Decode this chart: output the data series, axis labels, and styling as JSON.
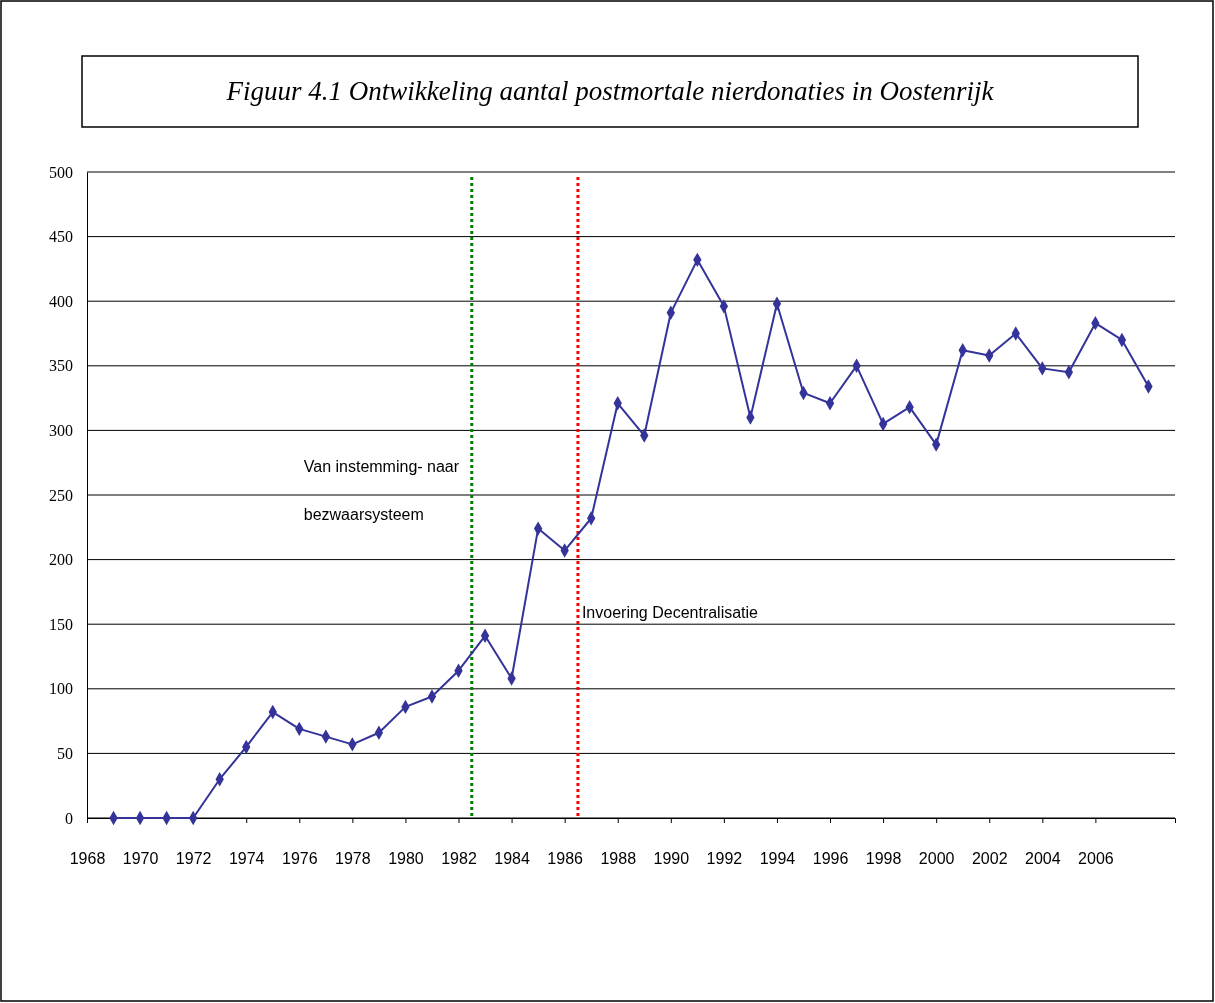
{
  "chart_data": {
    "type": "line",
    "title": "Figuur 4.1 Ontwikkeling aantal postmortale nierdonaties in Oostenrijk",
    "x": [
      1969,
      1970,
      1971,
      1972,
      1973,
      1974,
      1975,
      1976,
      1977,
      1978,
      1979,
      1980,
      1981,
      1982,
      1983,
      1984,
      1985,
      1986,
      1987,
      1988,
      1989,
      1990,
      1991,
      1992,
      1993,
      1994,
      1995,
      1996,
      1997,
      1998,
      1999,
      2000,
      2001,
      2002,
      2003,
      2004,
      2005,
      2006,
      2007,
      2008
    ],
    "series": [
      {
        "color": "#333399",
        "values": [
          0,
          0,
          0,
          0,
          30,
          55,
          82,
          69,
          63,
          57,
          66,
          86,
          94,
          114,
          141,
          108,
          224,
          207,
          232,
          321,
          296,
          391,
          432,
          396,
          310,
          398,
          329,
          321,
          350,
          305,
          318,
          289,
          362,
          358,
          375,
          348,
          345,
          383,
          370,
          334
        ]
      }
    ],
    "xlim": [
      1968,
      2009
    ],
    "xticks": [
      1968,
      1970,
      1972,
      1974,
      1976,
      1978,
      1980,
      1982,
      1984,
      1986,
      1988,
      1990,
      1992,
      1994,
      1996,
      1998,
      2000,
      2002,
      2004,
      2006
    ],
    "ylim": [
      0,
      500
    ],
    "yticks": [
      0,
      50,
      100,
      150,
      200,
      250,
      300,
      350,
      400,
      450,
      500
    ],
    "grid": "y",
    "marker": "diamond",
    "line_style": "solid",
    "ref_lines": [
      {
        "axis": "x",
        "value": 1982.5,
        "label": "Van instemming- naar bezwaarsysteem",
        "color": "#008000",
        "line_style": "dotted"
      },
      {
        "axis": "x",
        "value": 1986.5,
        "label": "Invoering Decentralisatie",
        "color": "#ff0000",
        "line_style": "dotted"
      }
    ]
  }
}
